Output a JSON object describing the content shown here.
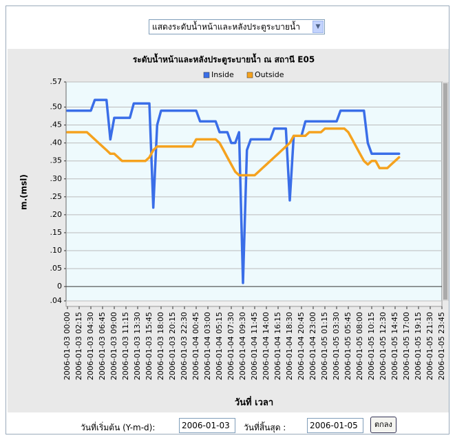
{
  "form": {
    "select_label": "แสดงระดับน้ำหน้าและหลังประตูระบายน้ำ",
    "start_label": "วันที่เริ่มต้น (Y-m-d):",
    "start_value": "2006-01-03",
    "end_label": "วันที่สิ้นสุด :",
    "end_value": "2006-01-05",
    "button": "ตกลง"
  },
  "chart_data": {
    "type": "line",
    "title": "ระดับน้ำหน้าและหลังประตูระบายน้ำ ณ สถานี E05",
    "y_label": "m.(msl)",
    "x_label": "วันที่ เวลา",
    "ylim": [
      -0.04,
      0.57
    ],
    "yticks": [
      {
        "value": 0.57,
        "label": ".57"
      },
      {
        "value": 0.5,
        "label": ".50"
      },
      {
        "value": 0.45,
        "label": ".45"
      },
      {
        "value": 0.4,
        "label": ".40"
      },
      {
        "value": 0.35,
        "label": ".35"
      },
      {
        "value": 0.3,
        "label": ".30"
      },
      {
        "value": 0.25,
        "label": ".25"
      },
      {
        "value": 0.2,
        "label": ".20"
      },
      {
        "value": 0.15,
        "label": ".15"
      },
      {
        "value": 0.1,
        "label": ".10"
      },
      {
        "value": 0.05,
        "label": ".05"
      },
      0,
      {
        "value": -0.04,
        "label": ".04"
      }
    ],
    "grid": true,
    "legend": "top",
    "categories": [
      "2006-01-03 00:00",
      null,
      null,
      "2006-01-03 02:15",
      null,
      null,
      "2006-01-03 04:30",
      null,
      null,
      "2006-01-03 06:45",
      null,
      null,
      "2006-01-03 09:00",
      null,
      null,
      "2006-01-03 11:15",
      null,
      null,
      "2006-01-03 13:30",
      null,
      null,
      "2006-01-03 15:45",
      null,
      null,
      "2006-01-03 18:00",
      null,
      null,
      "2006-01-03 20:15",
      null,
      null,
      "2006-01-03 22:30",
      null,
      null,
      "2006-01-04 00:45",
      null,
      null,
      "2006-01-04 03:00",
      null,
      null,
      "2006-01-04 05:15",
      null,
      null,
      "2006-01-04 07:30",
      null,
      null,
      "2006-01-04 09:30",
      null,
      null,
      "2006-01-04 11:45",
      null,
      null,
      "2006-01-04 14:00",
      null,
      null,
      "2006-01-04 16:15",
      null,
      null,
      "2006-01-04 18:30",
      null,
      null,
      "2006-01-04 20:45",
      null,
      null,
      "2006-01-04 23:00",
      null,
      null,
      "2006-01-05 01:15",
      null,
      null,
      "2006-01-05 03:30",
      null,
      null,
      "2006-01-05 05:45",
      null,
      null,
      "2006-01-05 08:00",
      null,
      null,
      "2006-01-05 10:15",
      null,
      null,
      "2006-01-05 12:30",
      null,
      null,
      "2006-01-05 14:45",
      null,
      null,
      "2006-01-05 17:00",
      null,
      null,
      "2006-01-05 19:15",
      null,
      null,
      "2006-01-05 21:30",
      null,
      null,
      "2006-01-05 23:45"
    ],
    "series": [
      {
        "name": "Inside",
        "color": "#3a6ee8",
        "values": [
          0.49,
          0.49,
          0.49,
          0.49,
          0.49,
          0.49,
          0.49,
          0.52,
          0.52,
          0.52,
          0.52,
          0.41,
          0.47,
          0.47,
          0.47,
          0.47,
          0.47,
          0.51,
          0.51,
          0.51,
          0.51,
          0.51,
          0.22,
          0.45,
          0.49,
          0.49,
          0.49,
          0.49,
          0.49,
          0.49,
          0.49,
          0.49,
          0.49,
          0.49,
          0.46,
          0.46,
          0.46,
          0.46,
          0.46,
          0.43,
          0.43,
          0.43,
          0.4,
          0.4,
          0.43,
          0.01,
          0.38,
          0.41,
          0.41,
          0.41,
          0.41,
          0.41,
          0.41,
          0.44,
          0.44,
          0.44,
          0.44,
          0.24,
          0.42,
          0.42,
          0.42,
          0.46,
          0.46,
          0.46,
          0.46,
          0.46,
          0.46,
          0.46,
          0.46,
          0.46,
          0.49,
          0.49,
          0.49,
          0.49,
          0.49,
          0.49,
          0.49,
          0.4,
          0.37,
          0.37,
          0.37,
          0.37,
          0.37,
          0.37,
          0.37,
          0.37,
          null,
          null,
          null,
          null,
          null,
          null,
          null,
          null,
          null,
          null,
          null
        ]
      },
      {
        "name": "Outside",
        "color": "#f5a21e",
        "values": [
          0.43,
          0.43,
          0.43,
          0.43,
          0.43,
          0.43,
          0.42,
          0.41,
          0.4,
          0.39,
          0.38,
          0.37,
          0.37,
          0.36,
          0.35,
          0.35,
          0.35,
          0.35,
          0.35,
          0.35,
          0.35,
          0.36,
          0.38,
          0.39,
          0.39,
          0.39,
          0.39,
          0.39,
          0.39,
          0.39,
          0.39,
          0.39,
          0.39,
          0.41,
          0.41,
          0.41,
          0.41,
          0.41,
          0.41,
          0.4,
          0.38,
          0.36,
          0.34,
          0.32,
          0.31,
          0.31,
          0.31,
          0.31,
          0.31,
          0.32,
          0.33,
          0.34,
          0.35,
          0.36,
          0.37,
          0.38,
          0.39,
          0.4,
          0.42,
          0.42,
          0.42,
          0.42,
          0.43,
          0.43,
          0.43,
          0.43,
          0.44,
          0.44,
          0.44,
          0.44,
          0.44,
          0.44,
          0.43,
          0.41,
          0.39,
          0.37,
          0.35,
          0.34,
          0.35,
          0.35,
          0.33,
          0.33,
          0.33,
          0.34,
          0.35,
          0.36,
          null,
          null,
          null,
          null,
          null,
          null,
          null,
          null,
          null,
          null,
          null
        ]
      }
    ]
  }
}
